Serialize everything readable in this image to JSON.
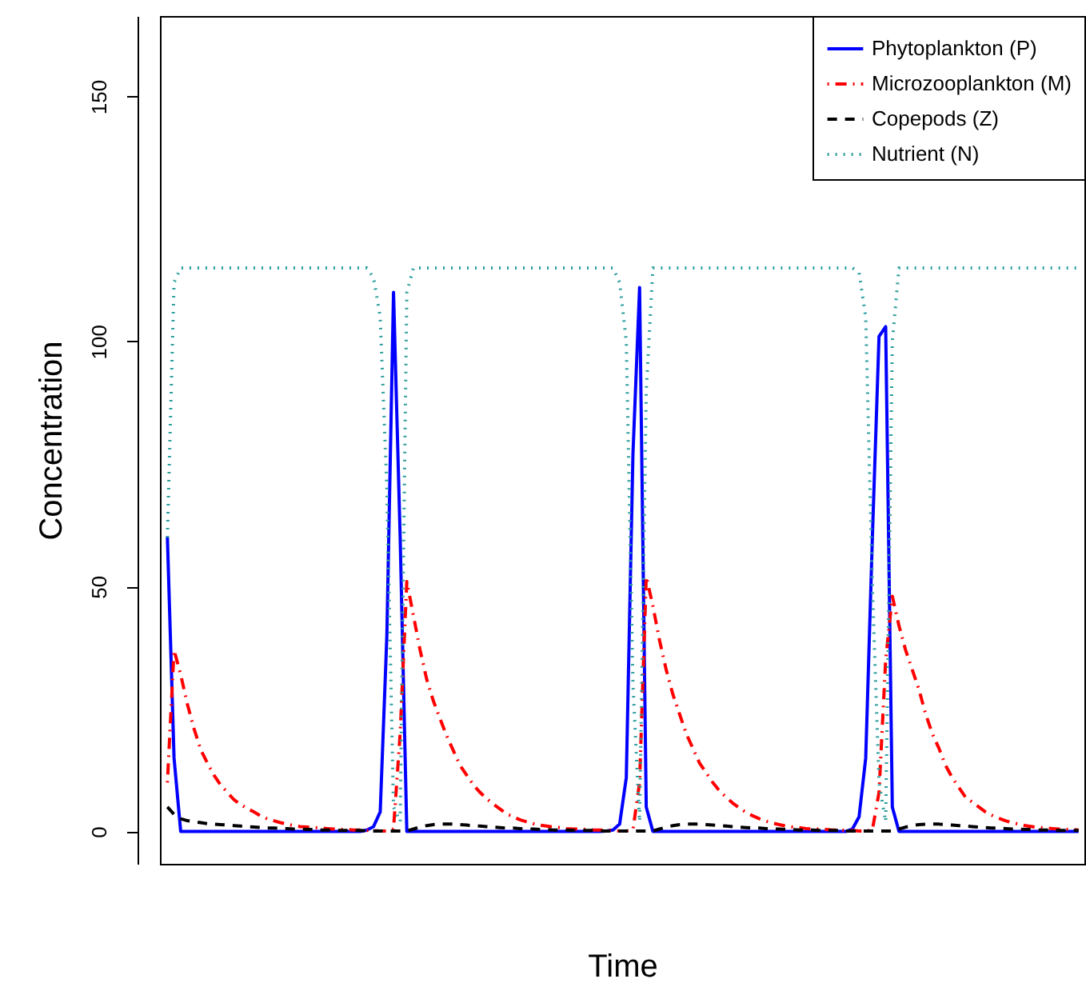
{
  "chart_data": {
    "type": "line",
    "xlabel": "Time",
    "ylabel": "Concentration",
    "categories": [
      null,
      null,
      null,
      null,
      null,
      null,
      null,
      null,
      null,
      null,
      null,
      null,
      null,
      null,
      null,
      null,
      null,
      null,
      null,
      null,
      null,
      null,
      null,
      null,
      null,
      null,
      null,
      null,
      null,
      null,
      null,
      null,
      null,
      null,
      null,
      null,
      null,
      null,
      null,
      null,
      null,
      null,
      null,
      null,
      null,
      null,
      null,
      null,
      null,
      null,
      null,
      null,
      null,
      null,
      null,
      null,
      null,
      null,
      null,
      null,
      null,
      null,
      null,
      null,
      null,
      null,
      null,
      null,
      null,
      null,
      null,
      null,
      null,
      null,
      null,
      null,
      null,
      null,
      null,
      null,
      null,
      null,
      null,
      null,
      null,
      null,
      null,
      null,
      null,
      null,
      null,
      null,
      null,
      null,
      null,
      null,
      null,
      null,
      null,
      null,
      null,
      null,
      null,
      null,
      null,
      null,
      null,
      null,
      null,
      null,
      null,
      null,
      null,
      null,
      null,
      null,
      null,
      null,
      null,
      null,
      null,
      null,
      null,
      null,
      null,
      null,
      null,
      null,
      null,
      null,
      null,
      null,
      null,
      null,
      null,
      null,
      null,
      null
    ],
    "series": [
      {
        "name": "Phytoplankton (P)",
        "color": "#0000ff",
        "line_style": "solid",
        "values": [
          60,
          15,
          0,
          0,
          0,
          0,
          0,
          0,
          0,
          0,
          0,
          0,
          0,
          0,
          0,
          0,
          0,
          0,
          0,
          0,
          0,
          0,
          0,
          0,
          0,
          0,
          0,
          0,
          0,
          0,
          0.3,
          1,
          4,
          40,
          110,
          60,
          0,
          0,
          0,
          0,
          0,
          0,
          0,
          0,
          0,
          0,
          0,
          0,
          0,
          0,
          0,
          0,
          0,
          0,
          0,
          0,
          0,
          0,
          0,
          0,
          0,
          0,
          0,
          0,
          0,
          0,
          0.1,
          0.3,
          1.5,
          11,
          77,
          111,
          5,
          0,
          0,
          0,
          0,
          0,
          0,
          0,
          0,
          0,
          0,
          0,
          0,
          0,
          0,
          0,
          0,
          0,
          0,
          0,
          0,
          0,
          0,
          0,
          0,
          0,
          0,
          0,
          0,
          0,
          0,
          0.5,
          3,
          15,
          60,
          101,
          103,
          5,
          0,
          0,
          0,
          0,
          0,
          0,
          0,
          0,
          0,
          0,
          0,
          0,
          0,
          0,
          0,
          0,
          0,
          0,
          0,
          0,
          0,
          0,
          0,
          0,
          0,
          0,
          0,
          0
        ]
      },
      {
        "name": "Microzooplankton (M)",
        "color": "#ff0000",
        "line_style": "dashdot",
        "values": [
          10,
          37,
          32,
          26,
          21,
          16.7,
          14,
          11.5,
          9.5,
          8,
          6.5,
          5.5,
          4.7,
          4,
          3.2,
          2.6,
          2.2,
          1.8,
          1.5,
          1.2,
          1,
          0.9,
          0.8,
          0.7,
          0.6,
          0.5,
          0.4,
          0.4,
          0.3,
          0.3,
          0.2,
          0.2,
          0.1,
          0.1,
          0.5,
          20,
          51,
          44,
          37,
          31,
          26.6,
          23,
          19.5,
          16.5,
          13.5,
          11.5,
          9.5,
          8,
          6.7,
          5.6,
          4.6,
          3.6,
          3,
          2.4,
          2,
          1.6,
          1.3,
          1.1,
          0.9,
          0.8,
          0.6,
          0.5,
          0.5,
          0.4,
          0.3,
          0.3,
          0.2,
          0.2,
          0.1,
          0.1,
          0.3,
          10,
          52,
          46,
          39,
          33,
          28,
          24,
          20,
          17,
          14,
          12,
          10,
          8.3,
          7,
          5.8,
          4.8,
          3.9,
          3.2,
          2.6,
          2.1,
          1.7,
          1.4,
          1.1,
          0.9,
          0.8,
          0.6,
          0.5,
          0.5,
          0.4,
          0.3,
          0.3,
          0.2,
          0.2,
          0.1,
          0.1,
          0.3,
          8,
          35,
          48,
          42,
          37,
          33,
          29,
          24,
          20,
          17,
          13.5,
          11,
          9,
          7,
          6,
          5,
          4,
          3.3,
          2.7,
          2.2,
          1.8,
          1.5,
          1.2,
          1,
          0.8,
          0.7,
          0.6,
          0.5,
          0.4,
          0.4,
          0.3
        ]
      },
      {
        "name": "Copepods (Z)",
        "color": "#000000",
        "line_style": "dashed",
        "values": [
          5,
          3.5,
          2.6,
          2.2,
          2,
          1.8,
          1.6,
          1.5,
          1.4,
          1.3,
          1.2,
          1.1,
          1,
          0.9,
          0.8,
          0.7,
          0.7,
          0.6,
          0.6,
          0.5,
          0.5,
          0.4,
          0.4,
          0.3,
          0.3,
          0.3,
          0.2,
          0.2,
          0.2,
          0.2,
          0.1,
          0.1,
          0.1,
          0.1,
          0.1,
          0.1,
          0.1,
          0.5,
          0.9,
          1.2,
          1.4,
          1.5,
          1.5,
          1.5,
          1.4,
          1.3,
          1.2,
          1.1,
          1,
          0.9,
          0.8,
          0.7,
          0.7,
          0.6,
          0.5,
          0.5,
          0.4,
          0.4,
          0.3,
          0.3,
          0.3,
          0.2,
          0.2,
          0.2,
          0.2,
          0.1,
          0.1,
          0.1,
          0.1,
          0.1,
          0.1,
          0.1,
          0.1,
          0.1,
          0.5,
          0.9,
          1.2,
          1.4,
          1.5,
          1.5,
          1.5,
          1.4,
          1.3,
          1.2,
          1.1,
          1,
          0.9,
          0.8,
          0.7,
          0.7,
          0.6,
          0.5,
          0.5,
          0.4,
          0.4,
          0.3,
          0.3,
          0.3,
          0.2,
          0.2,
          0.2,
          0.2,
          0.1,
          0.1,
          0.1,
          0.1,
          0.1,
          0.1,
          0.1,
          0.1,
          0.5,
          0.9,
          1.2,
          1.4,
          1.5,
          1.5,
          1.5,
          1.4,
          1.3,
          1.2,
          1.1,
          1,
          0.9,
          0.8,
          0.7,
          0.7,
          0.6,
          0.5,
          0.5,
          0.4,
          0.4,
          0.3,
          0.3,
          0.3,
          0.2,
          0.2,
          0.2,
          0.2
        ]
      },
      {
        "name": "Nutrient (N)",
        "color": "#2e9e9e",
        "line_style": "dotted",
        "values": [
          60,
          112,
          115,
          115,
          115,
          115,
          115,
          115,
          115,
          115,
          115,
          115,
          115,
          115,
          115,
          115,
          115,
          115,
          115,
          115,
          115,
          115,
          115,
          115,
          115,
          115,
          115,
          115,
          115,
          115,
          115,
          113,
          105,
          70,
          5,
          2,
          110,
          115,
          115,
          115,
          115,
          115,
          115,
          115,
          115,
          115,
          115,
          115,
          115,
          115,
          115,
          115,
          115,
          115,
          115,
          115,
          115,
          115,
          115,
          115,
          115,
          115,
          115,
          115,
          115,
          115,
          115,
          115,
          112,
          100,
          30,
          2,
          90,
          115,
          115,
          115,
          115,
          115,
          115,
          115,
          115,
          115,
          115,
          115,
          115,
          115,
          115,
          115,
          115,
          115,
          115,
          115,
          115,
          115,
          115,
          115,
          115,
          115,
          115,
          115,
          115,
          115,
          115,
          115,
          114,
          105,
          50,
          10,
          2,
          100,
          115,
          115,
          115,
          115,
          115,
          115,
          115,
          115,
          115,
          115,
          115,
          115,
          115,
          115,
          115,
          115,
          115,
          115,
          115,
          115,
          115,
          115,
          115,
          115,
          115,
          115,
          115,
          115
        ]
      }
    ],
    "ylim": [
      -6.6,
      166.4
    ],
    "yticks": [
      0,
      50,
      100,
      150
    ],
    "tick_labels": "y",
    "grid": false,
    "legend": "top right"
  }
}
